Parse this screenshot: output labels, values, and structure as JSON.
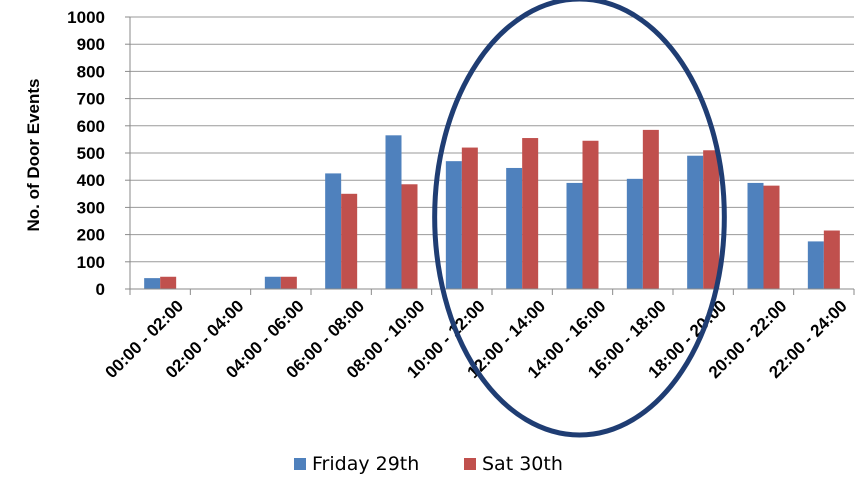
{
  "chart_data": {
    "type": "bar",
    "ylabel": "No. of Door Events",
    "ylim": [
      0,
      1000
    ],
    "yticks": [
      0,
      100,
      200,
      300,
      400,
      500,
      600,
      700,
      800,
      900,
      1000
    ],
    "grid": true,
    "legend_position": "bottom",
    "categories": [
      "00:00 - 02:00",
      "02:00 - 04:00",
      "04:00 - 06:00",
      "06:00 - 08:00",
      "08:00 - 10:00",
      "10:00 - 12:00",
      "12:00 - 14:00",
      "14:00 - 16:00",
      "16:00 - 18:00",
      "18:00 - 20:00",
      "20:00 - 22:00",
      "22:00 - 24:00"
    ],
    "series": [
      {
        "name": "Friday 29th",
        "color": "#4F81BD",
        "values": [
          40,
          0,
          45,
          425,
          565,
          470,
          445,
          390,
          405,
          490,
          390,
          175
        ]
      },
      {
        "name": "Sat 30th",
        "color": "#C0504D",
        "values": [
          45,
          0,
          45,
          350,
          385,
          520,
          555,
          545,
          585,
          510,
          380,
          215
        ]
      }
    ],
    "annotations": [
      {
        "type": "ellipse",
        "color": "#1F3D73",
        "spans_categories": [
          "10:00 - 12:00",
          "18:00 - 20:00"
        ]
      }
    ]
  }
}
